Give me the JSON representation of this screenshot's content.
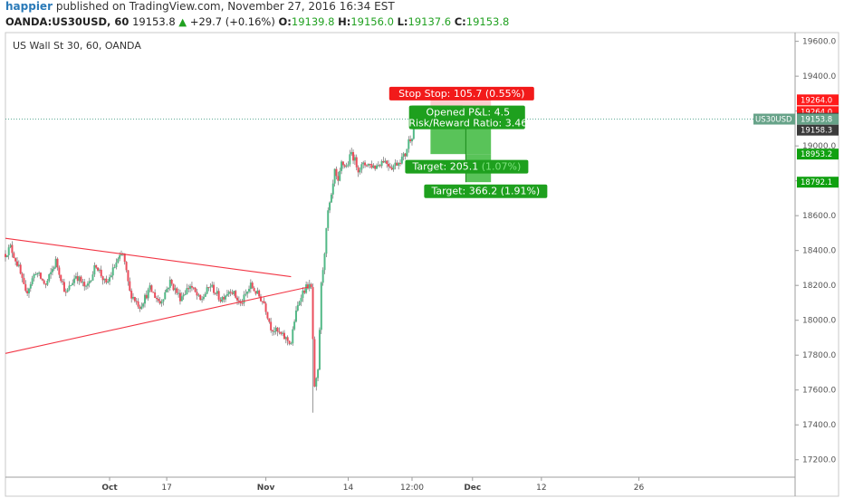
{
  "header": {
    "user": "happier",
    "published_text": "published on TradingView.com, November 27, 2016 16:34 EST"
  },
  "quote": {
    "symbol": "OANDA:US30USD, 60",
    "last": "19153.8",
    "change": "+29.7 (+0.16%)",
    "o_label": "O:",
    "o": "19139.8",
    "h_label": "H:",
    "h": "19156.0",
    "l_label": "L:",
    "l": "19137.6",
    "c_label": "C:",
    "c": "19153.8"
  },
  "chart_data": {
    "type": "candlestick",
    "title": "US Wall St 30, 60, OANDA",
    "ylim": [
      17100,
      19650
    ],
    "y_ticks": [
      17200,
      17400,
      17600,
      17800,
      18000,
      18200,
      18400,
      18600,
      18800,
      19000,
      19200,
      19400,
      19600
    ],
    "y_tick_labels": [
      "17200.0",
      "17400.0",
      "17600.0",
      "17800.0",
      "18000.0",
      "18200.0",
      "18400.0",
      "18600.0",
      "18800.0",
      "19000.0",
      "19200.0",
      "19400.0",
      "19600.0"
    ],
    "x_ticks": [
      {
        "label": "Oct",
        "idx": 62,
        "bold": true
      },
      {
        "label": "17",
        "idx": 96,
        "bold": false
      },
      {
        "label": "Nov",
        "idx": 155,
        "bold": true
      },
      {
        "label": "14",
        "idx": 204,
        "bold": false
      },
      {
        "label": "12:00",
        "idx": 242,
        "bold": false
      },
      {
        "label": "Dec",
        "idx": 278,
        "bold": true
      },
      {
        "label": "12",
        "idx": 319,
        "bold": false
      },
      {
        "label": "26",
        "idx": 377,
        "bold": false
      }
    ],
    "x_range_idx": [
      0,
      470
    ],
    "candle_count": 245,
    "price_path": [
      [
        0,
        18380
      ],
      [
        3,
        18420
      ],
      [
        8,
        18300
      ],
      [
        12,
        18150
      ],
      [
        18,
        18280
      ],
      [
        24,
        18200
      ],
      [
        30,
        18340
      ],
      [
        36,
        18150
      ],
      [
        42,
        18260
      ],
      [
        48,
        18180
      ],
      [
        54,
        18320
      ],
      [
        60,
        18200
      ],
      [
        66,
        18330
      ],
      [
        70,
        18380
      ],
      [
        74,
        18160
      ],
      [
        80,
        18080
      ],
      [
        86,
        18180
      ],
      [
        92,
        18100
      ],
      [
        98,
        18220
      ],
      [
        104,
        18130
      ],
      [
        110,
        18200
      ],
      [
        116,
        18110
      ],
      [
        122,
        18200
      ],
      [
        128,
        18120
      ],
      [
        134,
        18180
      ],
      [
        140,
        18090
      ],
      [
        146,
        18200
      ],
      [
        150,
        18150
      ],
      [
        154,
        18100
      ],
      [
        158,
        17960
      ],
      [
        162,
        17930
      ],
      [
        166,
        17900
      ],
      [
        170,
        17870
      ],
      [
        172,
        18000
      ],
      [
        174,
        18080
      ],
      [
        176,
        18150
      ],
      [
        180,
        18200
      ],
      [
        182,
        18180
      ],
      [
        184,
        17600
      ],
      [
        186,
        17700
      ],
      [
        188,
        18200
      ],
      [
        190,
        18400
      ],
      [
        192,
        18620
      ],
      [
        194,
        18700
      ],
      [
        196,
        18850
      ],
      [
        198,
        18780
      ],
      [
        200,
        18900
      ],
      [
        203,
        18880
      ],
      [
        206,
        18960
      ],
      [
        210,
        18870
      ],
      [
        215,
        18900
      ],
      [
        220,
        18880
      ],
      [
        225,
        18920
      ],
      [
        230,
        18880
      ],
      [
        234,
        18910
      ],
      [
        238,
        18950
      ],
      [
        240,
        19030
      ],
      [
        242,
        19060
      ],
      [
        244,
        19153.8
      ]
    ],
    "price_noise": 22,
    "spike_low_idx": 183,
    "spike_low": 17470,
    "last_price_label": "US30USD",
    "last_price": "19153.8",
    "support_line": {
      "from": [
        0,
        17810
      ],
      "to": [
        180,
        18190
      ]
    },
    "resistance_line": {
      "from": [
        0,
        18470
      ],
      "to": [
        170,
        18250
      ]
    },
    "position": {
      "entry": 19158.3,
      "stop": 19264.0,
      "target1": 18953.2,
      "target2": 18792.1,
      "start_idx": 253,
      "end_idx": 289,
      "target1_end_idx": 274,
      "stop_label": "Stop: 105.7 (0.55%)",
      "stop_label_prefix": "Stop",
      "pnl_label": "Opened P&L: 4.5",
      "rr_label": "Risk/Reward Ratio: 3.46",
      "rr_label_back": "Risk/",
      "open_label_back": "O",
      "target1_label": "Target: 205.1",
      "target1_pct": "(1.07%)",
      "target2_label": "Target: 366.2 (1.91%)"
    },
    "price_tags": [
      {
        "value": 19264.0,
        "text": "19264.0",
        "bg": "#ff1a1a",
        "fg": "#ffffff"
      },
      {
        "value": 19264.0,
        "text": "19264.0",
        "bg": "#ff1a1a",
        "fg": "#ffffff",
        "slot": 1
      },
      {
        "value": 19158.3,
        "text": "19158.3",
        "bg": "#3a3a3a",
        "fg": "#ffffff"
      },
      {
        "value": 19158.3,
        "text": "19158.3",
        "bg": "#3a3a3a",
        "fg": "#ffffff",
        "slot": 1
      },
      {
        "value": 19153.8,
        "text": "19153.8",
        "bg": "#67a389",
        "fg": "#ffffff"
      },
      {
        "value": 18953.2,
        "text": "18953.2",
        "bg": "#10a010",
        "fg": "#ffffff"
      },
      {
        "value": 18792.1,
        "text": "18792.1",
        "bg": "#10a010",
        "fg": "#ffffff"
      }
    ],
    "colors": {
      "up": "#53b987",
      "down": "#eb4d5c",
      "wick": "#555555",
      "trendline": "#f23645",
      "stop_zone": "#f7b6b6",
      "target_zone": "#3cb83c",
      "stop_box": "#f21a1a",
      "target_box": "#1ea01e",
      "last_line": "#4aa08a",
      "axis": "#9c9c9c",
      "border": "#c9c9c9"
    }
  }
}
